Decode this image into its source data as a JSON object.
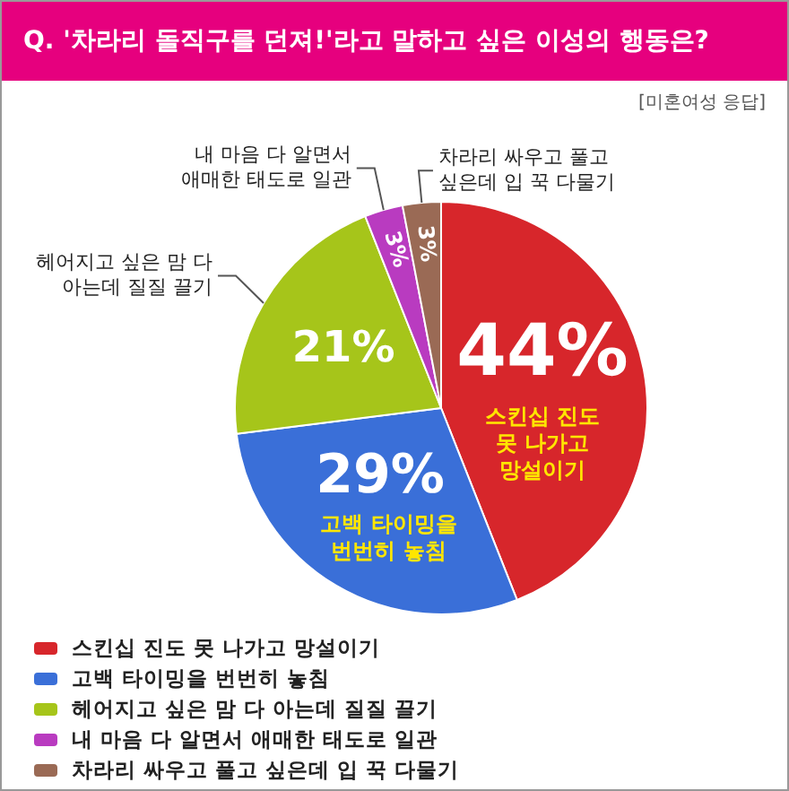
{
  "chart_data": {
    "type": "pie",
    "title": "Q. '차라리 돌직구를 던져!'라고 말하고 싶은 이성의 행동은?",
    "subtitle": "[미혼여성 응답]",
    "categories": [
      "스킨십 진도 못 나가고 망설이기",
      "고백 타이밍을 번번히 놓침",
      "헤어지고 싶은 맘 다 아는데 질질 끌기",
      "내 마음 다 알면서 애매한 태도로 일관",
      "차라리 싸우고 풀고 싶은데 입 꾹 다물기"
    ],
    "values": [
      44,
      29,
      21,
      3,
      3
    ],
    "value_labels": [
      "44%",
      "29%",
      "21%",
      "3%",
      "3%"
    ],
    "colors": [
      "#d7262b",
      "#3a6fd8",
      "#a6c51a",
      "#b93bc0",
      "#9a6a55"
    ],
    "legend": "bottom left"
  }
}
